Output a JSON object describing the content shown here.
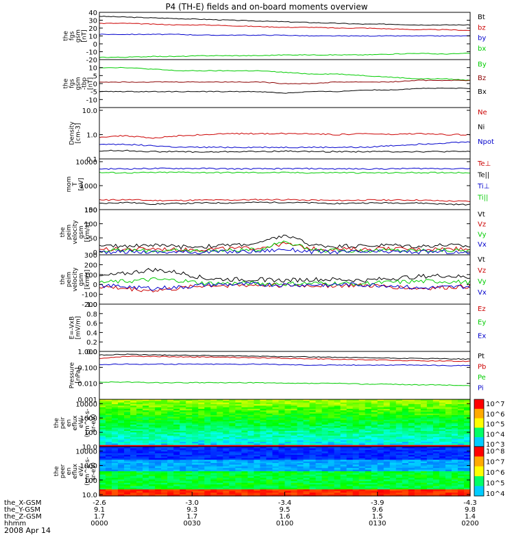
{
  "chart_data": {
    "type": "line",
    "title": "P4 (TH-E) fields and on-board moments overview",
    "date": "2008 Apr 14",
    "panels": [
      {
        "id": "p1",
        "ylabel": [
          "the",
          "fgs",
          "gsm",
          "[nT]"
        ],
        "ylim": [
          -20,
          40
        ],
        "yticks": [
          -20,
          -10,
          0,
          10,
          20,
          30,
          40
        ],
        "series": [
          {
            "name": "Bt",
            "color": "#000000",
            "values": [
              35,
              34,
              33,
              32,
              31,
              30,
              29,
              28,
              27,
              26,
              25,
              25,
              24,
              24,
              24
            ]
          },
          {
            "name": "bz",
            "color": "#cc0000",
            "values": [
              26,
              26,
              25,
              24,
              24,
              23,
              22,
              21,
              21,
              20,
              20,
              19,
              18,
              18,
              17
            ]
          },
          {
            "name": "by",
            "color": "#0000cc",
            "values": [
              12,
              12,
              12,
              12,
              11,
              11,
              11,
              11,
              10,
              10,
              10,
              10,
              10,
              10,
              10
            ]
          },
          {
            "name": "bx",
            "color": "#00cc00",
            "values": [
              -17,
              -17,
              -16,
              -16,
              -15,
              -15,
              -15,
              -14,
              -14,
              -14,
              -14,
              -13,
              -12,
              -13,
              -12
            ]
          }
        ]
      },
      {
        "id": "p2",
        "ylabel": [
          "the",
          "fgs",
          "gsm",
          "-tbp"
        ],
        "ylabel2": "[nT]",
        "ylim": [
          -15,
          15
        ],
        "yticks": [
          -10,
          -5,
          0,
          5,
          10
        ],
        "series": [
          {
            "name": "By",
            "color": "#00cc00",
            "values": [
              10,
              10,
              9,
              8,
              8,
              8,
              8,
              7,
              6,
              6,
              5,
              4,
              3,
              3,
              2
            ]
          },
          {
            "name": "Bz",
            "color": "#8b0000",
            "values": [
              1,
              1,
              1,
              1,
              1,
              1,
              1,
              0,
              0,
              1,
              1,
              1,
              2,
              2,
              2
            ]
          },
          {
            "name": "Bx",
            "color": "#000000",
            "values": [
              -5,
              -5,
              -5,
              -5,
              -5,
              -5,
              -5,
              -6,
              -5,
              -5,
              -4,
              -4,
              -3,
              -3,
              -3
            ]
          }
        ]
      },
      {
        "id": "p3",
        "ylabel": [
          "Density",
          "[cm-3]"
        ],
        "yscale": "log",
        "ylim": [
          0.1,
          13
        ],
        "yticks": [
          0.1,
          1.0,
          10.0
        ],
        "series": [
          {
            "name": "Ne",
            "color": "#cc0000",
            "values": [
              0.8,
              0.9,
              0.7,
              0.9,
              1.0,
              1.1,
              1.1,
              1.1,
              1.1,
              1.0,
              1.1,
              1.0,
              1.1,
              1.0,
              1.0
            ]
          },
          {
            "name": "Ni",
            "color": "#000000",
            "values": [
              0.22,
              0.22,
              0.2,
              0.2,
              0.19,
              0.2,
              0.2,
              0.21,
              0.2,
              0.2,
              0.2,
              0.2,
              0.2,
              0.2,
              0.2
            ]
          },
          {
            "name": "Npot",
            "color": "#0000cc",
            "values": [
              0.4,
              0.4,
              0.35,
              0.3,
              0.3,
              0.3,
              0.3,
              0.3,
              0.3,
              0.3,
              0.3,
              0.35,
              0.4,
              0.45,
              0.5
            ]
          }
        ]
      },
      {
        "id": "p4",
        "ylabel": [
          "mom",
          "T",
          "[eV]"
        ],
        "yscale": "log",
        "ylim": [
          100,
          13000
        ],
        "yticks": [
          100,
          1000,
          10000
        ],
        "series": [
          {
            "name": "Te⊥",
            "color": "#cc0000",
            "values": [
              250,
              260,
              240,
              240,
              250,
              250,
              260,
              260,
              250,
              240,
              250,
              250,
              250,
              230,
              220
            ]
          },
          {
            "name": "Te||",
            "color": "#000000",
            "values": [
              180,
              200,
              170,
              180,
              190,
              190,
              200,
              200,
              190,
              180,
              190,
              190,
              190,
              170,
              160
            ]
          },
          {
            "name": "Ti⊥",
            "color": "#0000cc",
            "values": [
              5000,
              5000,
              5200,
              5200,
              5200,
              5000,
              5000,
              5100,
              5100,
              5000,
              5000,
              5000,
              5200,
              5200,
              5200
            ]
          },
          {
            "name": "Ti||",
            "color": "#00cc00",
            "values": [
              3500,
              3400,
              3500,
              3600,
              3500,
              3500,
              3500,
              3500,
              3400,
              3500,
              3400,
              3400,
              3500,
              3500,
              3500
            ]
          }
        ]
      },
      {
        "id": "p5",
        "ylabel": [
          "the",
          "peim",
          "velocity",
          "gsm",
          "[km/s]"
        ],
        "ylim": [
          -10,
          150
        ],
        "yticks": [
          0,
          50,
          100,
          150
        ],
        "series": [
          {
            "name": "Vt",
            "color": "#000000",
            "values": [
              20,
              22,
              25,
              18,
              20,
              25,
              30,
              60,
              25,
              20,
              22,
              25,
              20,
              25,
              20
            ]
          },
          {
            "name": "Vz",
            "color": "#cc0000",
            "values": [
              10,
              10,
              12,
              8,
              10,
              12,
              15,
              30,
              12,
              10,
              10,
              12,
              10,
              12,
              10
            ]
          },
          {
            "name": "Vy",
            "color": "#00cc00",
            "values": [
              5,
              6,
              5,
              4,
              5,
              6,
              8,
              40,
              6,
              5,
              5,
              6,
              5,
              6,
              5
            ]
          },
          {
            "name": "Vx",
            "color": "#0000cc",
            "values": [
              0,
              1,
              0,
              -1,
              0,
              1,
              2,
              10,
              1,
              0,
              0,
              1,
              0,
              1,
              -5
            ]
          }
        ]
      },
      {
        "id": "p6",
        "ylabel": [
          "the",
          "peim",
          "velocity",
          "gsm",
          "[km/s]"
        ],
        "ylim": [
          -200,
          300
        ],
        "yticks": [
          -200,
          -100,
          0,
          100,
          200,
          300
        ],
        "series": [
          {
            "name": "Vt",
            "color": "#000000",
            "values": [
              80,
              110,
              150,
              120,
              60,
              50,
              50,
              40,
              50,
              50,
              40,
              60,
              80,
              90,
              70
            ]
          },
          {
            "name": "Vz",
            "color": "#cc0000",
            "values": [
              -20,
              -40,
              -60,
              -40,
              -10,
              -10,
              -5,
              -10,
              -10,
              -10,
              -10,
              -20,
              -40,
              -30,
              -20
            ]
          },
          {
            "name": "Vy",
            "color": "#00cc00",
            "values": [
              20,
              30,
              50,
              40,
              10,
              10,
              10,
              5,
              10,
              10,
              10,
              20,
              30,
              30,
              20
            ]
          },
          {
            "name": "Vx",
            "color": "#0000cc",
            "values": [
              -10,
              -20,
              -40,
              -30,
              -5,
              0,
              0,
              -5,
              -5,
              0,
              -5,
              -10,
              -40,
              -30,
              -20
            ]
          }
        ]
      },
      {
        "id": "p7",
        "ylabel": [
          "E=-VxB",
          "[mV/m]"
        ],
        "ylim": [
          0,
          1
        ],
        "yticks": [
          0.0,
          0.2,
          0.4,
          0.6,
          0.8,
          1.0
        ],
        "series": [
          {
            "name": "Ez",
            "color": "#cc0000",
            "values": []
          },
          {
            "name": "Ey",
            "color": "#00cc00",
            "values": []
          },
          {
            "name": "Ex",
            "color": "#0000cc",
            "values": []
          }
        ]
      },
      {
        "id": "p8",
        "ylabel": [
          "Pressure",
          "[nPa]"
        ],
        "yscale": "log",
        "ylim": [
          0.001,
          1.0
        ],
        "yticks": [
          0.001,
          0.01,
          0.1,
          1.0
        ],
        "series": [
          {
            "name": "Pt",
            "color": "#000000",
            "values": [
              0.6,
              0.65,
              0.6,
              0.58,
              0.55,
              0.52,
              0.5,
              0.48,
              0.45,
              0.42,
              0.4,
              0.38,
              0.36,
              0.35,
              0.33
            ]
          },
          {
            "name": "Pb",
            "color": "#cc0000",
            "values": [
              0.35,
              0.5,
              0.48,
              0.46,
              0.44,
              0.42,
              0.4,
              0.37,
              0.34,
              0.32,
              0.3,
              0.28,
              0.26,
              0.25,
              0.24
            ]
          },
          {
            "name": "Pe",
            "color": "#00cc00",
            "values": [
              0.012,
              0.012,
              0.011,
              0.011,
              0.011,
              0.011,
              0.011,
              0.01,
              0.01,
              0.01,
              0.009,
              0.009,
              0.008,
              0.008,
              0.007
            ]
          },
          {
            "name": "Pi",
            "color": "#0000cc",
            "values": [
              0.15,
              0.16,
              0.16,
              0.16,
              0.16,
              0.16,
              0.16,
              0.15,
              0.14,
              0.14,
              0.14,
              0.14,
              0.14,
              0.13,
              0.13
            ]
          }
        ]
      },
      {
        "id": "p9",
        "type": "heatmap",
        "ylabel": [
          "the",
          "peir",
          "en",
          "eflux",
          "eV/",
          "(cm^2-s-",
          "sr-eV)"
        ],
        "yscale": "log",
        "ylim": [
          10,
          20000
        ],
        "yticks": [
          10,
          100,
          1000,
          10000
        ],
        "colorbar": {
          "labels": [
            "10^7",
            "10^6",
            "10^5",
            "10^4",
            "10^3"
          ]
        }
      },
      {
        "id": "p10",
        "type": "heatmap",
        "ylabel": [
          "the",
          "peer",
          "en",
          "eflux",
          "eV/",
          "(cm^2-s-",
          "sr-eV)"
        ],
        "yscale": "log",
        "ylim": [
          8,
          20000
        ],
        "yticks": [
          10,
          100,
          1000,
          10000
        ],
        "colorbar": {
          "labels": [
            "10^8",
            "10^7",
            "10^6",
            "10^5",
            "10^4"
          ]
        }
      }
    ],
    "xaxis": {
      "rows": [
        {
          "label": "the_X-GSM",
          "values": [
            "-2.6",
            "-3.0",
            "-3.4",
            "-3.9",
            "-4.3"
          ]
        },
        {
          "label": "the_Y-GSM",
          "values": [
            "9.1",
            "9.3",
            "9.5",
            "9.6",
            "9.8"
          ]
        },
        {
          "label": "the_Z-GSM",
          "values": [
            "1.7",
            "1.7",
            "1.6",
            "1.5",
            "1.4"
          ]
        },
        {
          "label": "hhmm",
          "values": [
            "0000",
            "0030",
            "0100",
            "0130",
            "0200"
          ]
        }
      ]
    }
  }
}
